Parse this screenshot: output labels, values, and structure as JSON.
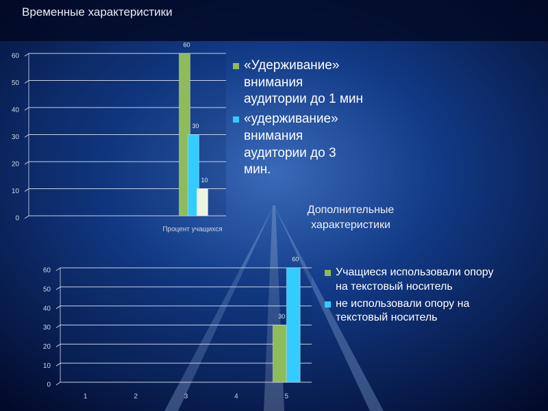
{
  "title": "Временные характеристики",
  "note": "Дополнительные характеристики",
  "chart_data": [
    {
      "type": "bar",
      "categories": [
        "Процент учащихся"
      ],
      "series": [
        {
          "name": "«Удерживание» внимания аудитории до 1 мин",
          "color": "#8fbc5a",
          "values": [
            60
          ]
        },
        {
          "name": "«удерживание» внимания аудитории до 3 мин.",
          "color": "#33ccff",
          "values": [
            30
          ]
        },
        {
          "name": null,
          "color": "#eef4e0",
          "values": [
            10
          ]
        }
      ],
      "ylim": [
        0,
        60
      ],
      "yticks": [
        0,
        10,
        20,
        30,
        40,
        50,
        60
      ],
      "grid": true
    },
    {
      "type": "bar",
      "categories": [
        "1",
        "2",
        "3",
        "4",
        "5"
      ],
      "series": [
        {
          "name": "Учащиеся использовали опору на текстовый носитель",
          "color": "#8fbc5a",
          "values": [
            null,
            null,
            null,
            null,
            30
          ]
        },
        {
          "name": "не использовали опору на текстовый носитель",
          "color": "#33ccff",
          "values": [
            null,
            null,
            null,
            null,
            60
          ]
        }
      ],
      "ylim": [
        0,
        60
      ],
      "yticks": [
        0,
        10,
        20,
        30,
        40,
        50,
        60
      ],
      "grid": true
    }
  ]
}
